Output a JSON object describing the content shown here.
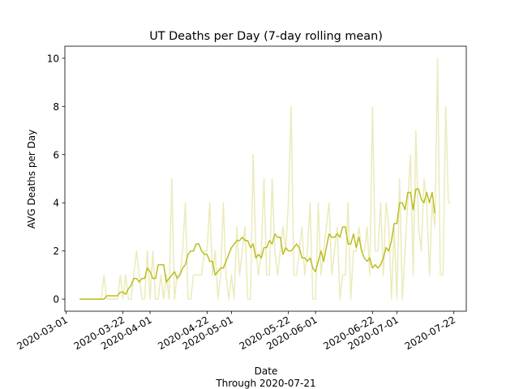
{
  "chart_data": {
    "type": "line",
    "title": "UT Deaths per Day (7-day rolling mean)",
    "x_label": "Date",
    "note": "Through 2020-07-21",
    "y_label": "AVG Deaths per Day",
    "x": [
      "2020-03-06",
      "2020-03-07",
      "2020-03-08",
      "2020-03-09",
      "2020-03-10",
      "2020-03-11",
      "2020-03-12",
      "2020-03-13",
      "2020-03-14",
      "2020-03-15",
      "2020-03-16",
      "2020-03-17",
      "2020-03-18",
      "2020-03-19",
      "2020-03-20",
      "2020-03-21",
      "2020-03-22",
      "2020-03-23",
      "2020-03-24",
      "2020-03-25",
      "2020-03-26",
      "2020-03-27",
      "2020-03-28",
      "2020-03-29",
      "2020-03-30",
      "2020-03-31",
      "2020-04-01",
      "2020-04-02",
      "2020-04-03",
      "2020-04-04",
      "2020-04-05",
      "2020-04-06",
      "2020-04-07",
      "2020-04-08",
      "2020-04-09",
      "2020-04-10",
      "2020-04-11",
      "2020-04-12",
      "2020-04-13",
      "2020-04-14",
      "2020-04-15",
      "2020-04-16",
      "2020-04-17",
      "2020-04-18",
      "2020-04-19",
      "2020-04-20",
      "2020-04-21",
      "2020-04-22",
      "2020-04-23",
      "2020-04-24",
      "2020-04-25",
      "2020-04-26",
      "2020-04-27",
      "2020-04-28",
      "2020-04-29",
      "2020-04-30",
      "2020-05-01",
      "2020-05-02",
      "2020-05-03",
      "2020-05-04",
      "2020-05-05",
      "2020-05-06",
      "2020-05-07",
      "2020-05-08",
      "2020-05-09",
      "2020-05-10",
      "2020-05-11",
      "2020-05-12",
      "2020-05-13",
      "2020-05-14",
      "2020-05-15",
      "2020-05-16",
      "2020-05-17",
      "2020-05-18",
      "2020-05-19",
      "2020-05-20",
      "2020-05-21",
      "2020-05-22",
      "2020-05-23",
      "2020-05-24",
      "2020-05-25",
      "2020-05-26",
      "2020-05-27",
      "2020-05-28",
      "2020-05-29",
      "2020-05-30",
      "2020-05-31",
      "2020-06-01",
      "2020-06-02",
      "2020-06-03",
      "2020-06-04",
      "2020-06-05",
      "2020-06-06",
      "2020-06-07",
      "2020-06-08",
      "2020-06-09",
      "2020-06-10",
      "2020-06-11",
      "2020-06-12",
      "2020-06-13",
      "2020-06-14",
      "2020-06-15",
      "2020-06-16",
      "2020-06-17",
      "2020-06-18",
      "2020-06-19",
      "2020-06-20",
      "2020-06-21",
      "2020-06-22",
      "2020-06-23",
      "2020-06-24",
      "2020-06-25",
      "2020-06-26",
      "2020-06-27",
      "2020-06-28",
      "2020-06-29",
      "2020-06-30",
      "2020-07-01",
      "2020-07-02",
      "2020-07-03",
      "2020-07-04",
      "2020-07-05",
      "2020-07-06",
      "2020-07-07",
      "2020-07-08",
      "2020-07-09",
      "2020-07-10",
      "2020-07-11",
      "2020-07-12",
      "2020-07-13",
      "2020-07-14",
      "2020-07-15",
      "2020-07-16",
      "2020-07-17",
      "2020-07-18",
      "2020-07-19",
      "2020-07-20",
      "2020-07-21"
    ],
    "series": [
      {
        "color": "#bcbd22",
        "opacity": 0.3,
        "values": [
          0,
          0,
          0,
          0,
          0,
          0,
          0,
          0,
          0,
          1,
          0,
          0,
          0,
          0,
          0,
          1,
          0,
          1,
          0,
          0,
          1,
          2,
          1,
          0,
          0,
          2,
          0,
          2,
          0,
          0,
          1,
          0,
          1,
          0,
          5,
          0,
          1,
          1,
          2,
          4,
          0,
          0,
          1,
          1,
          1,
          1,
          2,
          2,
          4,
          1,
          2,
          0,
          1,
          4,
          1,
          0,
          1,
          0,
          3,
          1,
          2,
          3,
          0,
          0,
          6,
          2,
          1,
          2,
          5,
          1,
          1,
          5,
          2,
          1,
          2,
          3,
          2,
          4,
          8,
          1,
          1,
          2,
          3,
          1,
          2,
          4,
          0,
          0,
          4,
          1,
          2,
          3,
          4,
          1,
          2,
          3,
          0,
          1,
          1,
          4,
          0,
          2,
          2,
          3,
          2,
          2,
          3,
          1,
          8,
          2,
          2,
          4,
          1,
          4,
          3,
          0,
          3,
          0,
          5,
          0,
          2,
          4,
          6,
          1,
          7,
          3,
          2,
          5,
          4,
          1,
          4,
          3,
          10,
          1,
          1,
          8,
          4,
          4
        ]
      },
      {
        "color": "#bcbd22",
        "opacity": 1,
        "values": [
          0,
          0,
          0,
          0,
          0,
          0,
          0,
          0,
          0,
          0,
          0.14,
          0.14,
          0.14,
          0.14,
          0.14,
          0.29,
          0.29,
          0.2,
          0.43,
          0.57,
          0.86,
          0.86,
          0.71,
          0.86,
          0.86,
          1.29,
          1.14,
          0.86,
          0.86,
          1.43,
          1.43,
          1.43,
          0.71,
          0.86,
          1.0,
          1.14,
          0.86,
          1.0,
          1.29,
          1.43,
          1.86,
          2.0,
          2.0,
          2.29,
          2.29,
          2.0,
          1.86,
          1.86,
          1.57,
          1.57,
          1.0,
          1.14,
          1.29,
          1.29,
          1.57,
          1.86,
          2.14,
          2.29,
          2.43,
          2.43,
          2.57,
          2.43,
          2.43,
          2.14,
          2.29,
          1.71,
          1.86,
          1.71,
          2.14,
          2.14,
          2.43,
          2.29,
          2.71,
          2.57,
          2.57,
          1.86,
          2.14,
          2.0,
          2.0,
          2.14,
          2.29,
          2.14,
          1.71,
          1.71,
          1.57,
          1.71,
          1.29,
          1.14,
          1.57,
          2.0,
          1.57,
          2.14,
          2.71,
          2.57,
          2.57,
          2.71,
          2.57,
          3.0,
          3.0,
          2.29,
          2.29,
          2.71,
          2.14,
          2.57,
          2.0,
          1.71,
          1.57,
          1.71,
          1.29,
          1.43,
          1.29,
          1.43,
          1.71,
          2.14,
          2.0,
          2.43,
          3.14,
          3.14,
          4.0,
          4.0,
          3.71,
          4.43,
          4.43,
          3.71,
          4.57,
          4.57,
          4.14,
          4.0,
          4.43,
          4.0,
          4.43,
          3.57,
          null,
          null,
          null,
          null,
          null,
          null
        ]
      }
    ],
    "xlim": [
      "2020-02-29T14:00",
      "2020-07-26T14:00"
    ],
    "xticks": [
      "2020-03-01",
      "2020-03-22",
      "2020-04-01",
      "2020-04-22",
      "2020-05-01",
      "2020-05-22",
      "2020-06-01",
      "2020-06-22",
      "2020-07-01",
      "2020-07-22"
    ],
    "ylim": [
      -0.5,
      10.5
    ],
    "yticks": [
      0,
      2,
      4,
      6,
      8,
      10
    ]
  }
}
